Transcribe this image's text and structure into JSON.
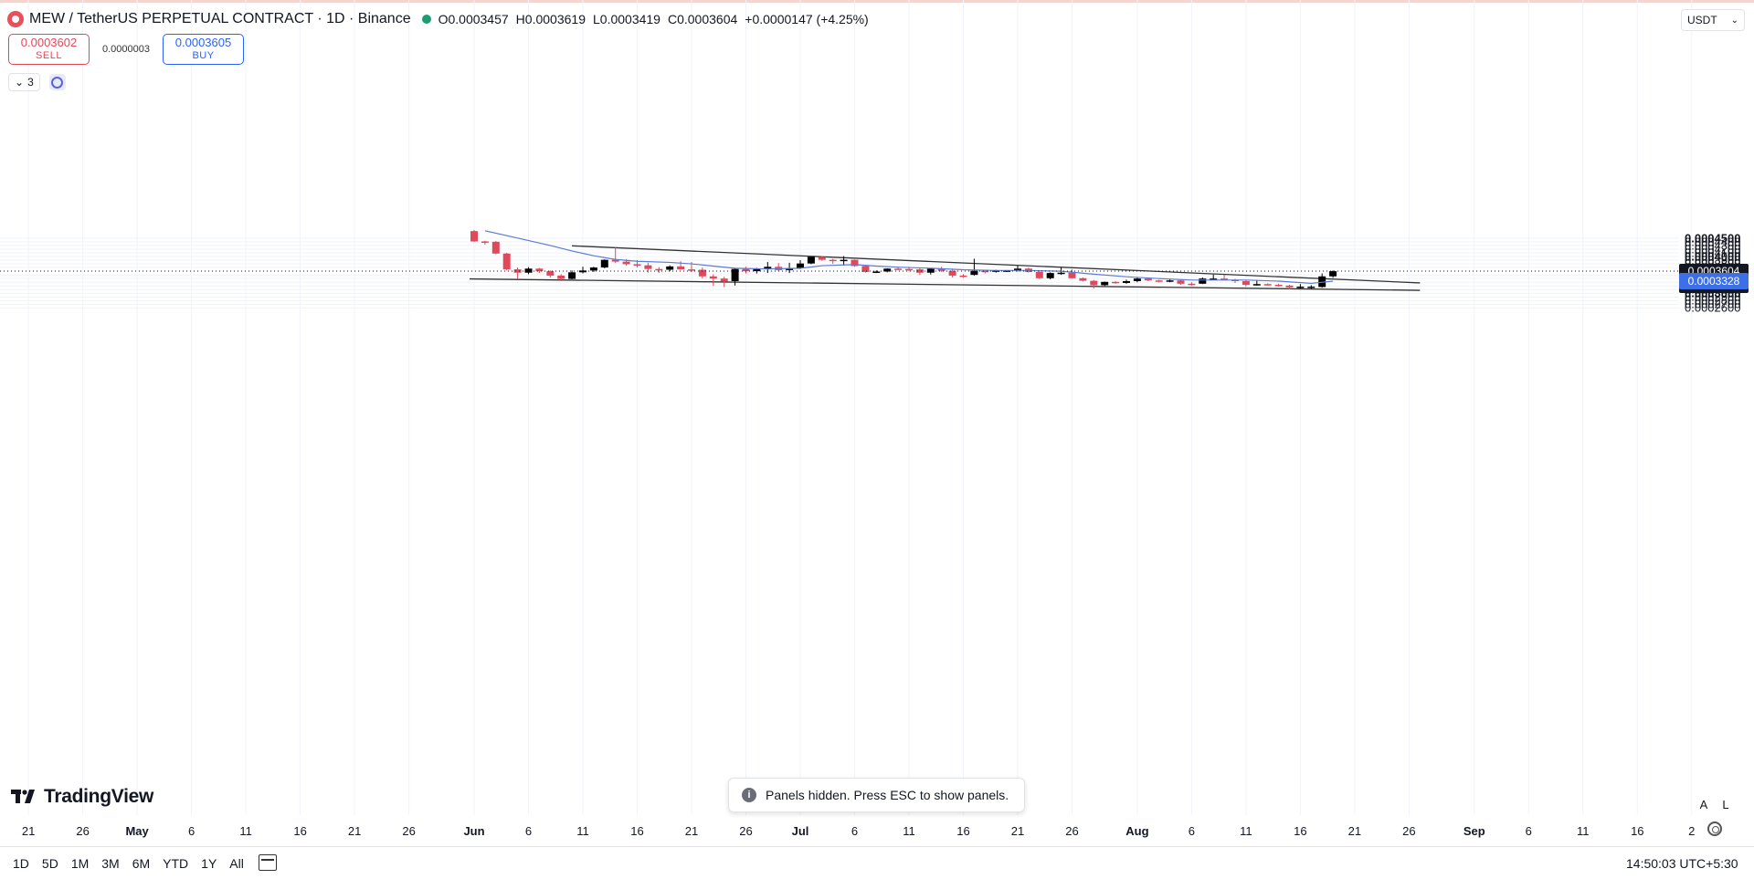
{
  "legend": {
    "title": "MEW / TetherUS PERPETUAL CONTRACT · 1D · Binance",
    "o_label": "O",
    "o": "0.0003457",
    "h_label": "H",
    "h": "0.0003619",
    "l_label": "L",
    "l": "0.0003419",
    "c_label": "C",
    "c": "0.0003604",
    "change": "+0.0000147 (+4.25%)"
  },
  "trade": {
    "sell_price": "0.0003602",
    "sell_label": "SELL",
    "spread": "0.0000003",
    "buy_price": "0.0003605",
    "buy_label": "BUY"
  },
  "indicators": {
    "count": "3"
  },
  "currency": "USDT",
  "price_axis": {
    "labels": [
      "0.0004500",
      "0.0004400",
      "0.0004300",
      "0.0004200",
      "0.0004100",
      "0.0004000",
      "0.0003900",
      "0.0003800",
      "0.0003700",
      "0.0003500",
      "0.0003400",
      "0.0003300",
      "0.0003200",
      "0.0003100",
      "0.0003000",
      "0.0002900",
      "0.0002800",
      "0.0002700",
      "0.0002600"
    ],
    "bold": [
      "0.0004500",
      "0.0004000",
      "0.0003500",
      "0.0003000"
    ],
    "last_price": "0.0003604",
    "countdown": "14:39:57",
    "ma_value": "0.0003328"
  },
  "time_axis": {
    "labels": [
      "21",
      "26",
      "May",
      "6",
      "11",
      "16",
      "21",
      "26",
      "Jun",
      "6",
      "11",
      "16",
      "21",
      "26",
      "Jul",
      "6",
      "11",
      "16",
      "21",
      "26",
      "Aug",
      "6",
      "11",
      "16",
      "21",
      "26",
      "Sep",
      "6",
      "11",
      "16",
      "2"
    ],
    "bold": [
      "May",
      "Jun",
      "Jul",
      "Aug",
      "Sep"
    ]
  },
  "toast": {
    "text": "Panels hidden. Press ESC to show panels."
  },
  "brand": "TradingView",
  "scale_buttons": {
    "auto": "A",
    "log": "L"
  },
  "ranges": [
    "1D",
    "5D",
    "1M",
    "3M",
    "6M",
    "YTD",
    "1Y",
    "All"
  ],
  "clock": "14:50:03 UTC+5:30",
  "colors": {
    "up": "#000000",
    "down": "#e0495a",
    "ma": "#5b7bd5",
    "trendline": "#333333"
  },
  "chart_data": {
    "type": "candlestick",
    "interval": "1D",
    "ylim": [
      0.000255,
      0.000465
    ],
    "candles": [
      {
        "date": "2024-06-01",
        "o": 0.000469,
        "h": 0.000472,
        "l": 0.00044,
        "c": 0.000441
      },
      {
        "date": "2024-06-02",
        "o": 0.000441,
        "h": 0.000443,
        "l": 0.000432,
        "c": 0.000439
      },
      {
        "date": "2024-06-03",
        "o": 0.00044,
        "h": 0.000442,
        "l": 0.000406,
        "c": 0.000408
      },
      {
        "date": "2024-06-04",
        "o": 0.000408,
        "h": 0.00041,
        "l": 0.000362,
        "c": 0.000365
      },
      {
        "date": "2024-06-05",
        "o": 0.000365,
        "h": 0.00037,
        "l": 0.000338,
        "c": 0.000356
      },
      {
        "date": "2024-06-06",
        "o": 0.000356,
        "h": 0.000371,
        "l": 0.000352,
        "c": 0.000367
      },
      {
        "date": "2024-06-07",
        "o": 0.000367,
        "h": 0.000369,
        "l": 0.000355,
        "c": 0.00036
      },
      {
        "date": "2024-06-08",
        "o": 0.00036,
        "h": 0.000362,
        "l": 0.000343,
        "c": 0.000348
      },
      {
        "date": "2024-06-09",
        "o": 0.000348,
        "h": 0.000352,
        "l": 0.000333,
        "c": 0.000339
      },
      {
        "date": "2024-06-10",
        "o": 0.000339,
        "h": 0.000362,
        "l": 0.000338,
        "c": 0.000357
      },
      {
        "date": "2024-06-11",
        "o": 0.000357,
        "h": 0.000372,
        "l": 0.000354,
        "c": 0.000362
      },
      {
        "date": "2024-06-12",
        "o": 0.000362,
        "h": 0.000372,
        "l": 0.000358,
        "c": 0.00037
      },
      {
        "date": "2024-06-13",
        "o": 0.00037,
        "h": 0.000392,
        "l": 0.000368,
        "c": 0.000391
      },
      {
        "date": "2024-06-14",
        "o": 0.000391,
        "h": 0.000426,
        "l": 0.000382,
        "c": 0.000386
      },
      {
        "date": "2024-06-15",
        "o": 0.000386,
        "h": 0.000393,
        "l": 0.000375,
        "c": 0.000379
      },
      {
        "date": "2024-06-16",
        "o": 0.000379,
        "h": 0.00039,
        "l": 0.00037,
        "c": 0.000376
      },
      {
        "date": "2024-06-17",
        "o": 0.000376,
        "h": 0.000383,
        "l": 0.000356,
        "c": 0.000366
      },
      {
        "date": "2024-06-18",
        "o": 0.000366,
        "h": 0.000371,
        "l": 0.000355,
        "c": 0.000364
      },
      {
        "date": "2024-06-19",
        "o": 0.000364,
        "h": 0.000376,
        "l": 0.00036,
        "c": 0.000373
      },
      {
        "date": "2024-06-20",
        "o": 0.000373,
        "h": 0.000387,
        "l": 0.000364,
        "c": 0.000365
      },
      {
        "date": "2024-06-21",
        "o": 0.000365,
        "h": 0.000385,
        "l": 0.000358,
        "c": 0.000364
      },
      {
        "date": "2024-06-22",
        "o": 0.000364,
        "h": 0.00037,
        "l": 0.00034,
        "c": 0.000346
      },
      {
        "date": "2024-06-23",
        "o": 0.000346,
        "h": 0.000352,
        "l": 0.00032,
        "c": 0.00034
      },
      {
        "date": "2024-06-24",
        "o": 0.00034,
        "h": 0.000345,
        "l": 0.000317,
        "c": 0.000332
      },
      {
        "date": "2024-06-25",
        "o": 0.000333,
        "h": 0.000369,
        "l": 0.000321,
        "c": 0.000366
      },
      {
        "date": "2024-06-26",
        "o": 0.000366,
        "h": 0.000372,
        "l": 0.000354,
        "c": 0.00036
      },
      {
        "date": "2024-06-27",
        "o": 0.00036,
        "h": 0.000369,
        "l": 0.000354,
        "c": 0.000366
      },
      {
        "date": "2024-06-28",
        "o": 0.000366,
        "h": 0.000385,
        "l": 0.000355,
        "c": 0.000372
      },
      {
        "date": "2024-06-29",
        "o": 0.000372,
        "h": 0.000382,
        "l": 0.00036,
        "c": 0.000363
      },
      {
        "date": "2024-06-30",
        "o": 0.000363,
        "h": 0.000383,
        "l": 0.000355,
        "c": 0.000368
      },
      {
        "date": "2024-07-01",
        "o": 0.000368,
        "h": 0.00039,
        "l": 0.000366,
        "c": 0.000381
      },
      {
        "date": "2024-07-02",
        "o": 0.000381,
        "h": 0.0004,
        "l": 0.000379,
        "c": 0.000399
      },
      {
        "date": "2024-07-03",
        "o": 0.000399,
        "h": 0.000401,
        "l": 0.000388,
        "c": 0.000391
      },
      {
        "date": "2024-07-04",
        "o": 0.000391,
        "h": 0.000394,
        "l": 0.00038,
        "c": 0.00039
      },
      {
        "date": "2024-07-05",
        "o": 0.00039,
        "h": 0.000401,
        "l": 0.000376,
        "c": 0.000391
      },
      {
        "date": "2024-07-06",
        "o": 0.000391,
        "h": 0.000392,
        "l": 0.000372,
        "c": 0.000374
      },
      {
        "date": "2024-07-07",
        "o": 0.000374,
        "h": 0.000376,
        "l": 0.000356,
        "c": 0.000358
      },
      {
        "date": "2024-07-08",
        "o": 0.000358,
        "h": 0.000362,
        "l": 0.000355,
        "c": 0.000359
      },
      {
        "date": "2024-07-09",
        "o": 0.000359,
        "h": 0.000368,
        "l": 0.000357,
        "c": 0.000367
      },
      {
        "date": "2024-07-10",
        "o": 0.000367,
        "h": 0.000371,
        "l": 0.000363,
        "c": 0.000366
      },
      {
        "date": "2024-07-11",
        "o": 0.000366,
        "h": 0.000372,
        "l": 0.00036,
        "c": 0.000365
      },
      {
        "date": "2024-07-12",
        "o": 0.000365,
        "h": 0.00037,
        "l": 0.00035,
        "c": 0.000356
      },
      {
        "date": "2024-07-13",
        "o": 0.000356,
        "h": 0.000369,
        "l": 0.000351,
        "c": 0.000367
      },
      {
        "date": "2024-07-14",
        "o": 0.000367,
        "h": 0.000372,
        "l": 0.000358,
        "c": 0.000361
      },
      {
        "date": "2024-07-15",
        "o": 0.000361,
        "h": 0.000364,
        "l": 0.000343,
        "c": 0.000348
      },
      {
        "date": "2024-07-16",
        "o": 0.000348,
        "h": 0.000352,
        "l": 0.000342,
        "c": 0.000345
      },
      {
        "date": "2024-07-17",
        "o": 0.00035,
        "h": 0.000394,
        "l": 0.000348,
        "c": 0.000361
      },
      {
        "date": "2024-07-18",
        "o": 0.000361,
        "h": 0.000362,
        "l": 0.000354,
        "c": 0.00036
      },
      {
        "date": "2024-07-19",
        "o": 0.00036,
        "h": 0.000364,
        "l": 0.000356,
        "c": 0.000362
      },
      {
        "date": "2024-07-20",
        "o": 0.000359,
        "h": 0.000363,
        "l": 0.000358,
        "c": 0.000362
      },
      {
        "date": "2024-07-21",
        "o": 0.000362,
        "h": 0.000375,
        "l": 0.000359,
        "c": 0.000367
      },
      {
        "date": "2024-07-22",
        "o": 0.000367,
        "h": 0.00037,
        "l": 0.000356,
        "c": 0.000358
      },
      {
        "date": "2024-07-23",
        "o": 0.000358,
        "h": 0.000361,
        "l": 0.000339,
        "c": 0.000341
      },
      {
        "date": "2024-07-24",
        "o": 0.000341,
        "h": 0.000357,
        "l": 0.000338,
        "c": 0.000355
      },
      {
        "date": "2024-07-25",
        "o": 0.000355,
        "h": 0.00037,
        "l": 0.00035,
        "c": 0.000356
      },
      {
        "date": "2024-07-26",
        "o": 0.000356,
        "h": 0.000365,
        "l": 0.00034,
        "c": 0.000341
      },
      {
        "date": "2024-07-27",
        "o": 0.000341,
        "h": 0.000343,
        "l": 0.000332,
        "c": 0.000334
      },
      {
        "date": "2024-07-28",
        "o": 0.000334,
        "h": 0.000336,
        "l": 0.000313,
        "c": 0.000322
      },
      {
        "date": "2024-07-29",
        "o": 0.000322,
        "h": 0.000332,
        "l": 0.00032,
        "c": 0.000331
      },
      {
        "date": "2024-07-30",
        "o": 0.000331,
        "h": 0.000333,
        "l": 0.000326,
        "c": 0.000328
      },
      {
        "date": "2024-07-31",
        "o": 0.000328,
        "h": 0.000337,
        "l": 0.000326,
        "c": 0.000333
      },
      {
        "date": "2024-08-01",
        "o": 0.000333,
        "h": 0.000344,
        "l": 0.00033,
        "c": 0.00034
      },
      {
        "date": "2024-08-02",
        "o": 0.00034,
        "h": 0.000341,
        "l": 0.000333,
        "c": 0.000335
      },
      {
        "date": "2024-08-03",
        "o": 0.000335,
        "h": 0.000337,
        "l": 0.00033,
        "c": 0.000334
      },
      {
        "date": "2024-08-04",
        "o": 0.000334,
        "h": 0.000339,
        "l": 0.00033,
        "c": 0.000335
      },
      {
        "date": "2024-08-05",
        "o": 0.000335,
        "h": 0.000337,
        "l": 0.000323,
        "c": 0.000326
      },
      {
        "date": "2024-08-06",
        "o": 0.000326,
        "h": 0.00033,
        "l": 0.000321,
        "c": 0.000325
      },
      {
        "date": "2024-08-07",
        "o": 0.000326,
        "h": 0.000343,
        "l": 0.000325,
        "c": 0.00034
      },
      {
        "date": "2024-08-08",
        "o": 0.000339,
        "h": 0.000351,
        "l": 0.000336,
        "c": 0.00034
      },
      {
        "date": "2024-08-09",
        "o": 0.00034,
        "h": 0.00035,
        "l": 0.000336,
        "c": 0.000337
      },
      {
        "date": "2024-08-10",
        "o": 0.000337,
        "h": 0.000339,
        "l": 0.000328,
        "c": 0.000333
      },
      {
        "date": "2024-08-11",
        "o": 0.000333,
        "h": 0.000336,
        "l": 0.000318,
        "c": 0.000323
      },
      {
        "date": "2024-08-12",
        "o": 0.000323,
        "h": 0.000336,
        "l": 0.000321,
        "c": 0.000325
      },
      {
        "date": "2024-08-13",
        "o": 0.000325,
        "h": 0.000327,
        "l": 0.000321,
        "c": 0.000323
      },
      {
        "date": "2024-08-14",
        "o": 0.000323,
        "h": 0.000326,
        "l": 0.000318,
        "c": 0.000321
      },
      {
        "date": "2024-08-15",
        "o": 0.000321,
        "h": 0.000323,
        "l": 0.000311,
        "c": 0.000316
      },
      {
        "date": "2024-08-16",
        "o": 0.000316,
        "h": 0.000325,
        "l": 0.000313,
        "c": 0.000318
      },
      {
        "date": "2024-08-17",
        "o": 0.000316,
        "h": 0.000322,
        "l": 0.000312,
        "c": 0.000318
      },
      {
        "date": "2024-08-18",
        "o": 0.000317,
        "h": 0.000354,
        "l": 0.000315,
        "c": 0.000346
      },
      {
        "date": "2024-08-19",
        "o": 0.000346,
        "h": 0.000362,
        "l": 0.000342,
        "c": 0.00036
      }
    ],
    "moving_average": [
      {
        "date": "2024-06-02",
        "value": 0.00047
      },
      {
        "date": "2024-06-05",
        "value": 0.00045
      },
      {
        "date": "2024-06-08",
        "value": 0.00043
      },
      {
        "date": "2024-06-10",
        "value": 0.000415
      },
      {
        "date": "2024-06-12",
        "value": 0.000402
      },
      {
        "date": "2024-06-14",
        "value": 0.000392
      },
      {
        "date": "2024-06-16",
        "value": 0.000387
      },
      {
        "date": "2024-06-19",
        "value": 0.000384
      },
      {
        "date": "2024-06-21",
        "value": 0.00038
      },
      {
        "date": "2024-06-23",
        "value": 0.000374
      },
      {
        "date": "2024-06-25",
        "value": 0.000368
      },
      {
        "date": "2024-06-28",
        "value": 0.000366
      },
      {
        "date": "2024-07-01",
        "value": 0.000368
      },
      {
        "date": "2024-07-03",
        "value": 0.000375
      },
      {
        "date": "2024-07-06",
        "value": 0.000378
      },
      {
        "date": "2024-07-08",
        "value": 0.000374
      },
      {
        "date": "2024-07-10",
        "value": 0.000371
      },
      {
        "date": "2024-07-13",
        "value": 0.000368
      },
      {
        "date": "2024-07-16",
        "value": 0.000364
      },
      {
        "date": "2024-07-19",
        "value": 0.000362
      },
      {
        "date": "2024-07-22",
        "value": 0.000362
      },
      {
        "date": "2024-07-25",
        "value": 0.00036
      },
      {
        "date": "2024-07-28",
        "value": 0.000352
      },
      {
        "date": "2024-07-31",
        "value": 0.000345
      },
      {
        "date": "2024-08-03",
        "value": 0.00034
      },
      {
        "date": "2024-08-06",
        "value": 0.000336
      },
      {
        "date": "2024-08-09",
        "value": 0.000336
      },
      {
        "date": "2024-08-11",
        "value": 0.000336
      },
      {
        "date": "2024-08-14",
        "value": 0.000333
      },
      {
        "date": "2024-08-16",
        "value": 0.000329
      },
      {
        "date": "2024-08-17",
        "value": 0.000327
      },
      {
        "date": "2024-08-19",
        "value": 0.000333
      }
    ],
    "trendlines": [
      {
        "name": "upper",
        "from": {
          "date": "2024-06-10",
          "value": 0.0003425
        },
        "to": {
          "date": "2024-08-27",
          "value": 0.0003282
        },
        "start_value": 0.000429,
        "start_date": "2024-06-10"
      },
      {
        "name": "lower",
        "from": {
          "date": "2024-06-01",
          "value": 0.000339
        },
        "to": {
          "date": "2024-08-27",
          "value": 0.000308
        }
      }
    ]
  }
}
